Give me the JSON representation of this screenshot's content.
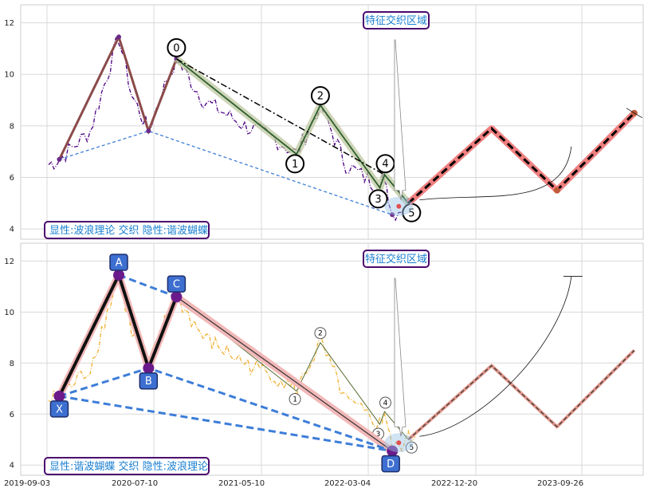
{
  "chart_data": [
    {
      "type": "line",
      "panel": "top",
      "ylim": [
        3.6,
        12.7
      ],
      "yticks": [
        4,
        6,
        8,
        10,
        12
      ],
      "xticks_labels": [
        "2019-09-03",
        "2020-07-10",
        "2021-05-10",
        "2022-03-04",
        "2022-12-20",
        "2023-09-26"
      ],
      "grid": true,
      "annotation_top": "特征交织区域",
      "legend_text": "显性:波浪理论 交织 隐性:谐波蝴蝶",
      "price_color": "#4b0082",
      "wave_points": [
        {
          "label": "0",
          "x": 0.215,
          "y": 10.6
        },
        {
          "label": "1",
          "x": 0.417,
          "y": 6.9
        },
        {
          "label": "2",
          "x": 0.457,
          "y": 8.8
        },
        {
          "label": "3",
          "x": 0.557,
          "y": 5.6
        },
        {
          "label": "4",
          "x": 0.565,
          "y": 6.1
        },
        {
          "label": "5",
          "x": 0.605,
          "y": 5.0
        }
      ],
      "harmonic_hidden": [
        {
          "x": 0.018,
          "y": 6.7
        },
        {
          "x": 0.118,
          "y": 11.45
        },
        {
          "x": 0.168,
          "y": 7.8
        },
        {
          "x": 0.215,
          "y": 10.6
        },
        {
          "x": 0.578,
          "y": 4.55
        }
      ],
      "projection": [
        {
          "x": 0.605,
          "y": 5.0
        },
        {
          "x": 0.745,
          "y": 7.9
        },
        {
          "x": 0.855,
          "y": 5.5
        },
        {
          "x": 0.985,
          "y": 8.5
        }
      ]
    },
    {
      "type": "line",
      "panel": "bottom",
      "ylim": [
        3.6,
        12.7
      ],
      "yticks": [
        4,
        6,
        8,
        10,
        12
      ],
      "xticks_labels": [
        "2019-09-03",
        "2020-07-10",
        "2021-05-10",
        "2022-03-04",
        "2022-12-20",
        "2023-09-26"
      ],
      "grid": true,
      "annotation_top": "特征交织区域",
      "legend_text": "显性:谐波蝴蝶 交织 隐性:波浪理论",
      "price_color": "#f0b030",
      "harmonic_points": [
        {
          "label": "X",
          "x": 0.018,
          "y": 6.7
        },
        {
          "label": "A",
          "x": 0.118,
          "y": 11.45
        },
        {
          "label": "B",
          "x": 0.168,
          "y": 7.8
        },
        {
          "label": "C",
          "x": 0.215,
          "y": 10.6
        },
        {
          "label": "D",
          "x": 0.578,
          "y": 4.55
        }
      ],
      "wave_points_hidden": [
        {
          "label": "1",
          "x": 0.417,
          "y": 6.9
        },
        {
          "label": "2",
          "x": 0.457,
          "y": 8.8
        },
        {
          "label": "3",
          "x": 0.557,
          "y": 5.6
        },
        {
          "label": "4",
          "x": 0.565,
          "y": 6.1
        },
        {
          "label": "5",
          "x": 0.605,
          "y": 5.0
        }
      ],
      "projection": [
        {
          "x": 0.605,
          "y": 5.0
        },
        {
          "x": 0.745,
          "y": 7.9
        },
        {
          "x": 0.855,
          "y": 5.5
        },
        {
          "x": 0.985,
          "y": 8.5
        }
      ]
    }
  ]
}
